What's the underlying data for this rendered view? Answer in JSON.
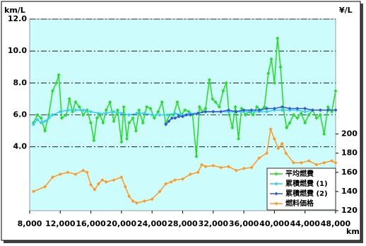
{
  "chart_data": {
    "type": "line",
    "y_label": "km/L",
    "y2_label": "¥/L",
    "x_label": "km",
    "xlim": [
      8000,
      48000
    ],
    "xticks": [
      {
        "value": 8000,
        "label": "8,000"
      },
      {
        "value": 12000,
        "label": "12,000"
      },
      {
        "value": 16000,
        "label": "16,000"
      },
      {
        "value": 20000,
        "label": "20,000"
      },
      {
        "value": 24000,
        "label": "24,000"
      },
      {
        "value": 28000,
        "label": "28,000"
      },
      {
        "value": 32000,
        "label": "32,000"
      },
      {
        "value": 36000,
        "label": "36,000"
      },
      {
        "value": 40000,
        "label": "40,000"
      },
      {
        "value": 44000,
        "label": "44,000"
      },
      {
        "value": 48000,
        "label": "48,000"
      }
    ],
    "ylim": [
      0,
      12
    ],
    "yticks": [
      {
        "value": 4,
        "label": "4.0"
      },
      {
        "value": 6,
        "label": "6.0"
      },
      {
        "value": 8,
        "label": "8.0"
      },
      {
        "value": 10,
        "label": "10.0"
      },
      {
        "value": 12,
        "label": "12.0"
      }
    ],
    "y2lim": [
      120,
      320
    ],
    "y2ticks": [
      120,
      140,
      160,
      180,
      200
    ],
    "grid": true,
    "legend": "bottom-right",
    "series": [
      {
        "name": "平均燃費",
        "color": "#22dd22",
        "x": [
          8500,
          9000,
          9500,
          10000,
          10500,
          11000,
          11500,
          11800,
          12200,
          12800,
          13200,
          13600,
          14000,
          14500,
          15000,
          15500,
          16000,
          16400,
          16800,
          17200,
          17600,
          18000,
          18500,
          19000,
          19500,
          20000,
          20300,
          20700,
          21000,
          21500,
          21900,
          22300,
          22800,
          23300,
          23800,
          24300,
          24800,
          25300,
          25800,
          26300,
          26800,
          27300,
          27800,
          28300,
          28800,
          29300,
          29800,
          30200,
          30600,
          31000,
          31500,
          31900,
          32300,
          32800,
          33300,
          33700,
          34100,
          34500,
          34900,
          35300,
          35700,
          36200,
          36700,
          37200,
          37700,
          38200,
          38700,
          39200,
          39600,
          40000,
          40400,
          40800,
          41200,
          41600,
          42000,
          42500,
          43000,
          43500,
          44000,
          44500,
          45000,
          45500,
          46000,
          46500,
          47000,
          47500,
          48000
        ],
        "values": [
          5.5,
          6.0,
          5.8,
          5.0,
          6.0,
          7.5,
          8.0,
          8.5,
          5.8,
          6.0,
          7.0,
          6.2,
          6.8,
          6.5,
          6.0,
          6.3,
          5.5,
          4.4,
          5.8,
          6.0,
          5.5,
          6.3,
          6.8,
          5.6,
          6.3,
          4.3,
          6.5,
          4.5,
          5.5,
          5.8,
          5.0,
          6.3,
          5.5,
          6.5,
          6.4,
          5.8,
          6.2,
          6.8,
          5.5,
          6.0,
          6.0,
          6.8,
          6.0,
          6.3,
          6.2,
          6.0,
          3.4,
          6.5,
          6.2,
          6.4,
          8.2,
          7.0,
          6.8,
          6.5,
          7.5,
          8.0,
          6.0,
          5.2,
          6.5,
          4.5,
          6.4,
          6.0,
          6.2,
          6.0,
          6.5,
          6.3,
          6.5,
          8.6,
          9.5,
          8.0,
          10.8,
          9.0,
          6.3,
          5.2,
          5.5,
          6.0,
          5.8,
          6.1,
          5.5,
          6.0,
          6.3,
          5.8,
          6.0,
          4.8,
          6.5,
          6.2,
          7.5
        ]
      },
      {
        "name": "累積燃費 (1)",
        "color": "#33ccff",
        "x": [
          8500,
          9000,
          9500,
          10000,
          10500,
          11000,
          12000,
          13000,
          14000,
          15000,
          16000,
          17000,
          18000,
          19000,
          20000,
          21000,
          22000,
          23000,
          24000,
          25000,
          26000,
          27000,
          28000,
          29000,
          30000,
          31000,
          32000,
          33000,
          34000,
          35000,
          36000,
          37000,
          38000,
          39000,
          40000,
          41000,
          42000,
          43000,
          44000,
          45000,
          46000,
          47000,
          48000
        ],
        "values": [
          5.4,
          5.7,
          5.5,
          5.6,
          5.8,
          6.0,
          6.2,
          6.3,
          6.3,
          6.3,
          6.2,
          6.1,
          6.1,
          6.2,
          6.1,
          6.0,
          6.1,
          6.1,
          6.0,
          6.0,
          6.0,
          6.1,
          6.0,
          6.1,
          6.1,
          6.2,
          6.2,
          6.2,
          6.2,
          6.2,
          6.2,
          6.2,
          6.2,
          6.2,
          6.3,
          6.3,
          6.3,
          6.3,
          6.2,
          6.3,
          6.3,
          6.3,
          6.3
        ]
      },
      {
        "name": "累積燃費 (2)",
        "color": "#3355dd",
        "x": [
          25800,
          26200,
          26600,
          27000,
          27500,
          28000,
          28500,
          29000,
          30000,
          31000,
          32000,
          33000,
          34000,
          35000,
          36000,
          37000,
          38000,
          39000,
          40000,
          41000,
          42000,
          43000,
          44000,
          45000,
          46000,
          47000,
          48000
        ],
        "values": [
          5.4,
          5.6,
          5.8,
          5.8,
          5.9,
          5.9,
          6.0,
          6.0,
          6.1,
          6.2,
          6.2,
          6.2,
          6.3,
          6.2,
          6.3,
          6.3,
          6.3,
          6.4,
          6.4,
          6.5,
          6.4,
          6.4,
          6.4,
          6.3,
          6.3,
          6.3,
          6.3
        ]
      },
      {
        "name": "燃料価格",
        "color": "#ff9922",
        "axis": "y2",
        "x": [
          8500,
          10000,
          11000,
          12000,
          13000,
          14000,
          15000,
          15500,
          16000,
          16500,
          17000,
          17500,
          18000,
          19000,
          20000,
          20500,
          21000,
          21500,
          22000,
          23000,
          24000,
          25000,
          25800,
          26500,
          27000,
          28000,
          29000,
          30000,
          30500,
          31000,
          32000,
          33000,
          34000,
          35000,
          36000,
          37000,
          38000,
          39000,
          39500,
          40000,
          40500,
          41000,
          41500,
          42500,
          43500,
          44500,
          45500,
          46500,
          47500,
          48000
        ],
        "values": [
          140,
          145,
          155,
          158,
          160,
          158,
          162,
          160,
          147,
          142,
          148,
          152,
          150,
          152,
          155,
          145,
          135,
          130,
          128,
          130,
          132,
          140,
          148,
          150,
          152,
          153,
          158,
          160,
          168,
          166,
          167,
          165,
          166,
          162,
          164,
          165,
          175,
          180,
          205,
          195,
          185,
          190,
          180,
          170,
          170,
          172,
          168,
          170,
          172,
          170
        ]
      }
    ]
  }
}
